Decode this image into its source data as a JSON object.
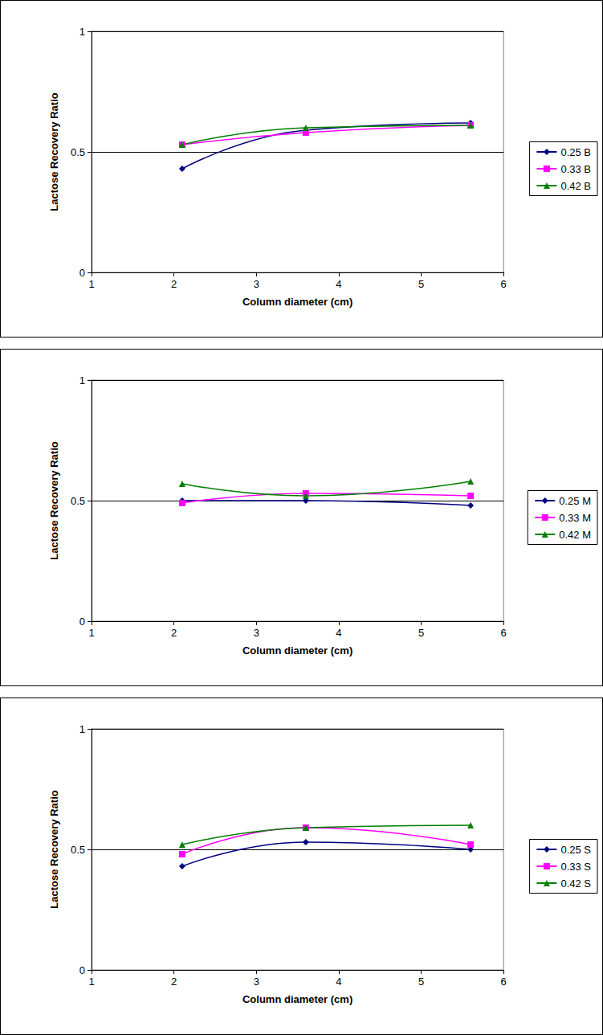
{
  "chart_data": [
    {
      "type": "line",
      "x_label": "Column diameter (cm)",
      "y_label": "Lactose Recovery Ratio",
      "x": [
        2.1,
        3.6,
        5.6
      ],
      "xlim": [
        1,
        6
      ],
      "xticks": [
        1,
        2,
        3,
        4,
        5,
        6
      ],
      "ylim": [
        0,
        1
      ],
      "yticks": [
        0,
        0.5,
        1
      ],
      "grid": true,
      "legend": "right",
      "series": [
        {
          "name": "0.25 B",
          "color": "#000080",
          "marker": "diamond",
          "values": [
            0.43,
            0.59,
            0.62
          ]
        },
        {
          "name": "0.33 B",
          "color": "#ff00ff",
          "marker": "square",
          "values": [
            0.53,
            0.58,
            0.61
          ]
        },
        {
          "name": "0.42 B",
          "color": "#008000",
          "marker": "triangle",
          "values": [
            0.53,
            0.6,
            0.61
          ]
        }
      ]
    },
    {
      "type": "line",
      "x_label": "Column diameter (cm)",
      "y_label": "Lactose Recovery Ratio",
      "x": [
        2.1,
        3.6,
        5.6
      ],
      "xlim": [
        1,
        6
      ],
      "xticks": [
        1,
        2,
        3,
        4,
        5,
        6
      ],
      "ylim": [
        0,
        1
      ],
      "yticks": [
        0,
        0.5,
        1
      ],
      "grid": true,
      "legend": "right",
      "series": [
        {
          "name": "0.25 M",
          "color": "#000080",
          "marker": "diamond",
          "values": [
            0.5,
            0.5,
            0.48
          ]
        },
        {
          "name": "0.33 M",
          "color": "#ff00ff",
          "marker": "square",
          "values": [
            0.49,
            0.53,
            0.52
          ]
        },
        {
          "name": "0.42 M",
          "color": "#008000",
          "marker": "triangle",
          "values": [
            0.57,
            0.52,
            0.58
          ]
        }
      ]
    },
    {
      "type": "line",
      "x_label": "Column diameter (cm)",
      "y_label": "Lactose Recovery Ratio",
      "x": [
        2.1,
        3.6,
        5.6
      ],
      "xlim": [
        1,
        6
      ],
      "xticks": [
        1,
        2,
        3,
        4,
        5,
        6
      ],
      "ylim": [
        0,
        1
      ],
      "yticks": [
        0,
        0.5,
        1
      ],
      "grid": true,
      "legend": "right",
      "series": [
        {
          "name": "0.25 S",
          "color": "#000080",
          "marker": "diamond",
          "values": [
            0.43,
            0.53,
            0.5
          ]
        },
        {
          "name": "0.33 S",
          "color": "#ff00ff",
          "marker": "square",
          "values": [
            0.48,
            0.59,
            0.52
          ]
        },
        {
          "name": "0.42 S",
          "color": "#008000",
          "marker": "triangle",
          "values": [
            0.52,
            0.59,
            0.6
          ]
        }
      ]
    }
  ]
}
